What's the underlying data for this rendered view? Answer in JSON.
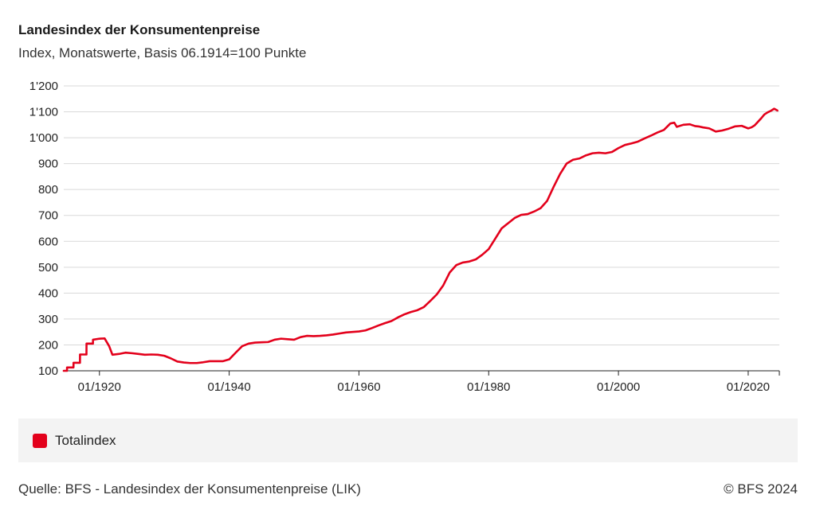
{
  "title": "Landesindex der Konsumentenpreise",
  "subtitle": "Index, Monatswerte, Basis 06.1914=100 Punkte",
  "legend": {
    "label": "Totalindex"
  },
  "footer": {
    "source": "Quelle: BFS - Landesindex der Konsumentenpreise (LIK)",
    "copyright": "© BFS 2024"
  },
  "colors": {
    "series": "#e3001b",
    "grid": "#d9d9d9",
    "axis": "#222222",
    "legend_bg": "#f3f3f3"
  },
  "chart_data": {
    "type": "line",
    "title": "Landesindex der Konsumentenpreise",
    "subtitle": "Index, Monatswerte, Basis 06.1914=100 Punkte",
    "xlabel": "",
    "ylabel": "",
    "xlim": [
      1914.5,
      2024.8
    ],
    "ylim": [
      100,
      1200
    ],
    "grid": true,
    "legend_position": "bottom",
    "y_ticks": [
      100,
      200,
      300,
      400,
      500,
      600,
      700,
      800,
      900,
      1000,
      1100,
      1200
    ],
    "y_tick_labels": [
      "100",
      "200",
      "300",
      "400",
      "500",
      "600",
      "700",
      "800",
      "900",
      "1'000",
      "1'100",
      "1'200"
    ],
    "x_ticks": [
      1920,
      1940,
      1960,
      1980,
      2000,
      2020
    ],
    "x_tick_labels": [
      "01/1920",
      "01/1940",
      "01/1960",
      "01/1980",
      "01/2000",
      "01/2020"
    ],
    "series": [
      {
        "name": "Totalindex",
        "color": "#e3001b",
        "x": [
          1914.5,
          1915.0,
          1915.01,
          1916.0,
          1916.01,
          1917.0,
          1917.01,
          1918.0,
          1918.01,
          1919.0,
          1919.01,
          1920.0,
          1920.8,
          1921.5,
          1922.0,
          1923.0,
          1924.0,
          1925.0,
          1926.0,
          1927.0,
          1928.0,
          1929.0,
          1930.0,
          1931.0,
          1932.0,
          1933.0,
          1934.0,
          1935.0,
          1936.0,
          1937.0,
          1938.0,
          1939.0,
          1940.0,
          1941.0,
          1942.0,
          1943.0,
          1944.0,
          1945.0,
          1946.0,
          1947.0,
          1948.0,
          1949.0,
          1950.0,
          1951.0,
          1952.0,
          1953.0,
          1954.0,
          1955.0,
          1956.0,
          1957.0,
          1958.0,
          1959.0,
          1960.0,
          1961.0,
          1962.0,
          1963.0,
          1964.0,
          1965.0,
          1966.0,
          1967.0,
          1968.0,
          1969.0,
          1970.0,
          1971.0,
          1972.0,
          1973.0,
          1974.0,
          1975.0,
          1976.0,
          1977.0,
          1978.0,
          1979.0,
          1980.0,
          1981.0,
          1982.0,
          1983.0,
          1984.0,
          1985.0,
          1986.0,
          1987.0,
          1988.0,
          1989.0,
          1990.0,
          1991.0,
          1992.0,
          1993.0,
          1994.0,
          1995.0,
          1996.0,
          1997.0,
          1998.0,
          1999.0,
          2000.0,
          2001.0,
          2002.0,
          2003.0,
          2004.0,
          2005.0,
          2006.0,
          2007.0,
          2008.0,
          2008.6,
          2009.0,
          2010.0,
          2011.0,
          2011.8,
          2012.5,
          2013.0,
          2014.0,
          2015.0,
          2016.0,
          2017.0,
          2018.0,
          2019.0,
          2020.0,
          2020.5,
          2021.0,
          2022.0,
          2022.5,
          2023.0,
          2023.5,
          2024.0,
          2024.5
        ],
        "values": [
          100,
          100,
          113,
          113,
          131,
          131,
          163,
          163,
          205,
          205,
          220,
          224,
          225,
          195,
          162,
          165,
          170,
          168,
          165,
          162,
          163,
          162,
          158,
          148,
          136,
          132,
          130,
          130,
          133,
          137,
          137,
          137,
          144,
          170,
          195,
          205,
          209,
          210,
          211,
          220,
          224,
          222,
          220,
          230,
          235,
          234,
          235,
          237,
          240,
          244,
          248,
          250,
          252,
          256,
          265,
          275,
          284,
          292,
          306,
          318,
          327,
          334,
          346,
          370,
          395,
          430,
          480,
          508,
          518,
          522,
          530,
          548,
          570,
          610,
          650,
          670,
          690,
          702,
          705,
          715,
          728,
          756,
          810,
          860,
          900,
          915,
          920,
          932,
          940,
          942,
          940,
          945,
          960,
          972,
          978,
          985,
          997,
          1008,
          1020,
          1030,
          1055,
          1058,
          1042,
          1050,
          1052,
          1045,
          1043,
          1040,
          1036,
          1024,
          1028,
          1035,
          1044,
          1046,
          1036,
          1040,
          1048,
          1075,
          1090,
          1098,
          1104,
          1112,
          1105
        ]
      }
    ]
  }
}
